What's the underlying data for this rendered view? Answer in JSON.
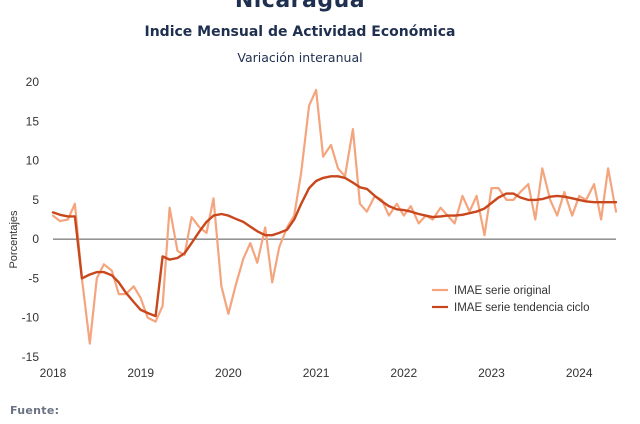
{
  "header": {
    "title": "Nicaragua",
    "subtitle": "Indice Mensual de  Actividad Económica",
    "subsubtitle": "Variación interanual"
  },
  "footer": {
    "source_label": "Fuente:"
  },
  "colors": {
    "original": "#f4a57e",
    "trend": "#c8471c",
    "zero_line": "#555555"
  },
  "chart_data": {
    "type": "line",
    "ylabel": "Porcentajes",
    "ylim": [
      -15,
      20
    ],
    "yticks": [
      -15,
      -10,
      -5,
      0,
      5,
      10,
      15,
      20
    ],
    "xlim": [
      2018,
      2024.42
    ],
    "xticks": [
      2018,
      2019,
      2020,
      2021,
      2022,
      2023,
      2024
    ],
    "grid": false,
    "legend_position": "bottom-right",
    "series": [
      {
        "name": "IMAE serie original",
        "x": [
          2018.0,
          2018.08,
          2018.17,
          2018.25,
          2018.33,
          2018.42,
          2018.5,
          2018.58,
          2018.67,
          2018.75,
          2018.83,
          2018.92,
          2019.0,
          2019.08,
          2019.17,
          2019.25,
          2019.33,
          2019.42,
          2019.5,
          2019.58,
          2019.67,
          2019.75,
          2019.83,
          2019.92,
          2020.0,
          2020.08,
          2020.17,
          2020.25,
          2020.33,
          2020.42,
          2020.5,
          2020.58,
          2020.67,
          2020.75,
          2020.83,
          2020.92,
          2021.0,
          2021.08,
          2021.17,
          2021.25,
          2021.33,
          2021.42,
          2021.5,
          2021.58,
          2021.67,
          2021.75,
          2021.83,
          2021.92,
          2022.0,
          2022.08,
          2022.17,
          2022.25,
          2022.33,
          2022.42,
          2022.5,
          2022.58,
          2022.67,
          2022.75,
          2022.83,
          2022.92,
          2023.0,
          2023.08,
          2023.17,
          2023.25,
          2023.33,
          2023.42,
          2023.5,
          2023.58,
          2023.67,
          2023.75,
          2023.83,
          2023.92,
          2024.0,
          2024.08,
          2024.17,
          2024.25,
          2024.33,
          2024.42
        ],
        "values": [
          3.0,
          2.3,
          2.5,
          4.5,
          -5.0,
          -13.3,
          -5.0,
          -3.2,
          -4.0,
          -7.0,
          -7.0,
          -6.0,
          -7.5,
          -10.0,
          -10.5,
          -8.5,
          4.0,
          -1.5,
          -2.0,
          2.8,
          1.5,
          0.8,
          5.2,
          -6.0,
          -9.5,
          -6.0,
          -2.5,
          -0.5,
          -3.0,
          1.5,
          -5.5,
          -1.0,
          1.5,
          3.0,
          8.5,
          17.0,
          19.0,
          10.5,
          12.0,
          9.0,
          8.0,
          14.0,
          4.5,
          3.5,
          5.5,
          5.0,
          3.0,
          4.5,
          3.0,
          4.2,
          2.0,
          3.0,
          2.5,
          4.0,
          3.0,
          2.0,
          5.5,
          3.5,
          5.5,
          0.5,
          6.5,
          6.5,
          5.0,
          5.0,
          6.0,
          7.0,
          2.5,
          9.0,
          5.0,
          3.0,
          6.0,
          3.0,
          5.5,
          5.0,
          7.0,
          2.5,
          9.0,
          3.5
        ]
      },
      {
        "name": "IMAE serie  tendencia ciclo",
        "x": [
          2018.0,
          2018.08,
          2018.17,
          2018.25,
          2018.33,
          2018.42,
          2018.5,
          2018.58,
          2018.67,
          2018.75,
          2018.83,
          2018.92,
          2019.0,
          2019.08,
          2019.17,
          2019.25,
          2019.33,
          2019.42,
          2019.5,
          2019.58,
          2019.67,
          2019.75,
          2019.83,
          2019.92,
          2020.0,
          2020.08,
          2020.17,
          2020.25,
          2020.33,
          2020.42,
          2020.5,
          2020.58,
          2020.67,
          2020.75,
          2020.83,
          2020.92,
          2021.0,
          2021.08,
          2021.17,
          2021.25,
          2021.33,
          2021.42,
          2021.5,
          2021.58,
          2021.67,
          2021.75,
          2021.83,
          2021.92,
          2022.0,
          2022.08,
          2022.17,
          2022.25,
          2022.33,
          2022.42,
          2022.5,
          2022.58,
          2022.67,
          2022.75,
          2022.83,
          2022.92,
          2023.0,
          2023.08,
          2023.17,
          2023.25,
          2023.33,
          2023.42,
          2023.5,
          2023.58,
          2023.67,
          2023.75,
          2023.83,
          2023.92,
          2024.0,
          2024.08,
          2024.17,
          2024.25,
          2024.33,
          2024.42
        ],
        "values": [
          3.4,
          3.1,
          2.9,
          2.9,
          -5.0,
          -4.5,
          -4.2,
          -4.2,
          -4.6,
          -5.5,
          -6.8,
          -8.0,
          -9.0,
          -9.4,
          -9.8,
          -2.2,
          -2.6,
          -2.4,
          -1.8,
          -0.5,
          1.0,
          2.2,
          3.0,
          3.2,
          3.0,
          2.6,
          2.2,
          1.6,
          1.0,
          0.5,
          0.5,
          0.8,
          1.2,
          2.5,
          4.5,
          6.5,
          7.4,
          7.8,
          8.0,
          8.0,
          7.8,
          7.2,
          6.6,
          6.4,
          5.5,
          4.8,
          4.2,
          3.8,
          3.7,
          3.5,
          3.2,
          3.0,
          2.8,
          2.9,
          3.0,
          3.0,
          3.1,
          3.3,
          3.5,
          3.9,
          4.6,
          5.3,
          5.8,
          5.8,
          5.3,
          5.0,
          5.0,
          5.1,
          5.4,
          5.5,
          5.4,
          5.2,
          5.0,
          4.8,
          4.7,
          4.7,
          4.7,
          4.7
        ]
      }
    ]
  }
}
